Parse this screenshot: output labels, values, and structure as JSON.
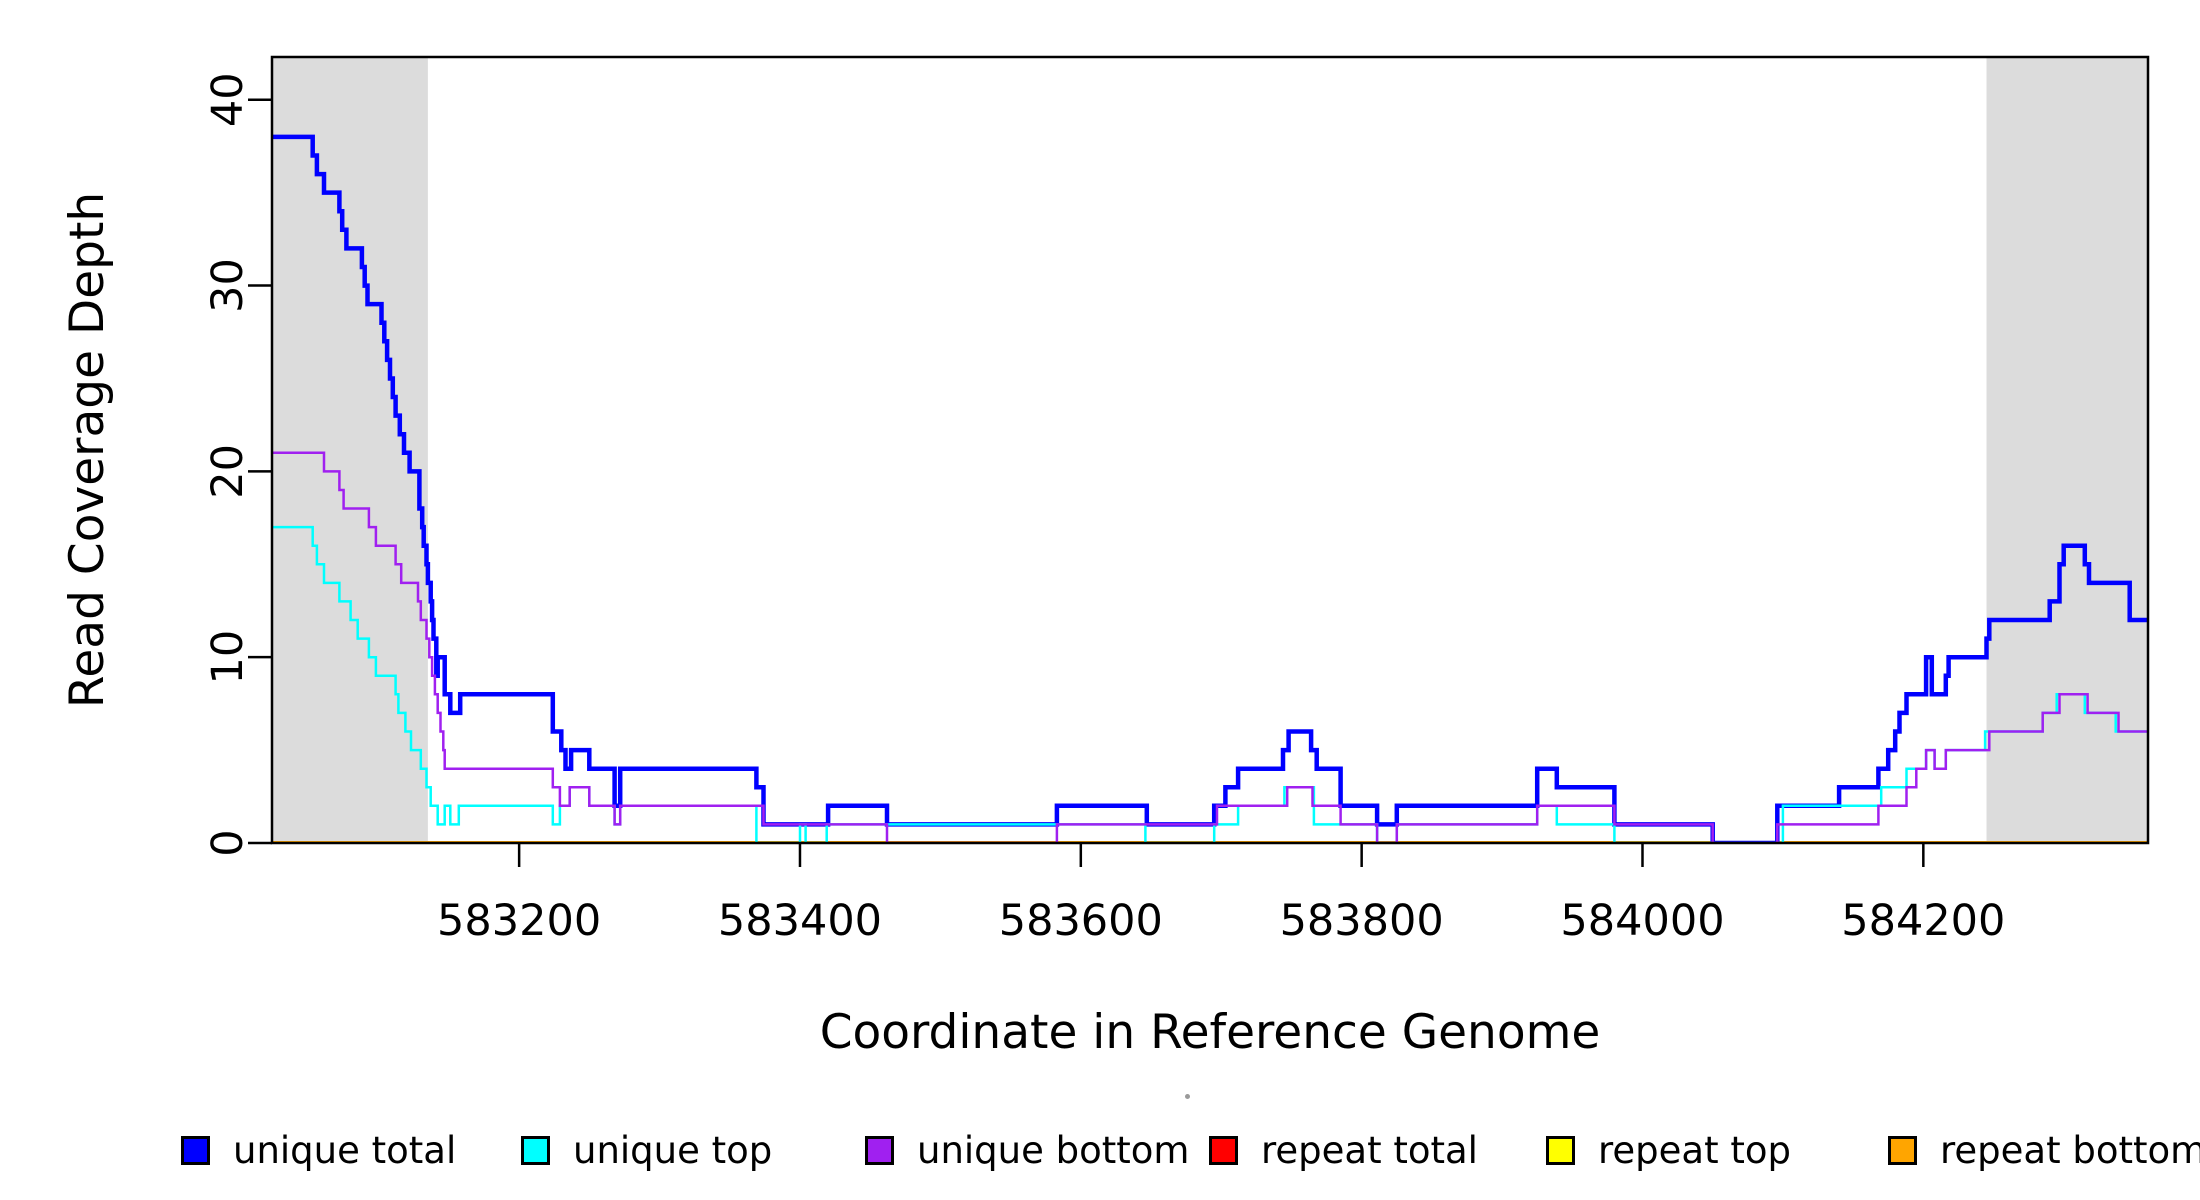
{
  "figure": {
    "x_axis_title": "Coordinate in Reference Genome",
    "y_axis_title": "Read Coverage Depth"
  },
  "legend": {
    "items": [
      {
        "label": "unique total",
        "color": "#0000FF"
      },
      {
        "label": "unique top",
        "color": "#00FFFF"
      },
      {
        "label": "unique bottom",
        "color": "#A020F0"
      },
      {
        "label": "repeat total",
        "color": "#FF0000"
      },
      {
        "label": "repeat top",
        "color": "#FFFF00"
      },
      {
        "label": "repeat bottom",
        "color": "#FFA500"
      }
    ]
  },
  "chart_data": {
    "type": "line",
    "subtype": "step-post-coverage",
    "title": "",
    "xlabel": "Coordinate in Reference Genome",
    "ylabel": "Read Coverage Depth",
    "xlim": [
      583024,
      584360
    ],
    "ylim": [
      0,
      42.3
    ],
    "xticks": [
      583200,
      583400,
      583600,
      583800,
      584000,
      584200
    ],
    "yticks": [
      0,
      10,
      20,
      30,
      40
    ],
    "grid": false,
    "legend_position": "bottom",
    "background_color": "#FFFFFF",
    "band_color": "#DCDCDC",
    "highlight_bands": [
      {
        "x0": 583024,
        "x1": 583135
      },
      {
        "x0": 584245,
        "x1": 584360
      }
    ],
    "series": [
      {
        "name": "repeat total",
        "color": "#FF0000",
        "width": 2.5,
        "points": [
          [
            583024,
            0
          ]
        ]
      },
      {
        "name": "repeat top",
        "color": "#FFFF00",
        "width": 2.5,
        "points": [
          [
            583024,
            0
          ]
        ]
      },
      {
        "name": "repeat bottom",
        "color": "#FFA500",
        "width": 4,
        "points": [
          [
            583024,
            0
          ]
        ]
      },
      {
        "name": "unique total",
        "color": "#0000FF",
        "width": 4.5,
        "points": [
          [
            583024,
            38
          ],
          [
            583053,
            37
          ],
          [
            583056,
            36
          ],
          [
            583061,
            35
          ],
          [
            583072,
            34
          ],
          [
            583074,
            33
          ],
          [
            583077,
            32
          ],
          [
            583088,
            31
          ],
          [
            583090,
            30
          ],
          [
            583092,
            29
          ],
          [
            583102,
            28
          ],
          [
            583104,
            27
          ],
          [
            583106,
            26
          ],
          [
            583108,
            25
          ],
          [
            583110,
            24
          ],
          [
            583112,
            23
          ],
          [
            583115,
            22
          ],
          [
            583118,
            21
          ],
          [
            583122,
            20
          ],
          [
            583129,
            18
          ],
          [
            583131,
            17
          ],
          [
            583132,
            16
          ],
          [
            583134,
            15
          ],
          [
            583135,
            14
          ],
          [
            583137,
            13
          ],
          [
            583138,
            12
          ],
          [
            583139,
            11
          ],
          [
            583141,
            9
          ],
          [
            583142,
            10
          ],
          [
            583147,
            8
          ],
          [
            583151,
            7
          ],
          [
            583158,
            8
          ],
          [
            583224,
            6
          ],
          [
            583230,
            5
          ],
          [
            583233,
            4
          ],
          [
            583237,
            5
          ],
          [
            583250,
            4
          ],
          [
            583268,
            2
          ],
          [
            583272,
            4
          ],
          [
            583369,
            3
          ],
          [
            583374,
            1
          ],
          [
            583420,
            2
          ],
          [
            583462,
            1
          ],
          [
            583583,
            2
          ],
          [
            583647,
            1
          ],
          [
            583695,
            2
          ],
          [
            583703,
            3
          ],
          [
            583712,
            4
          ],
          [
            583744,
            5
          ],
          [
            583748,
            6
          ],
          [
            583764,
            5
          ],
          [
            583768,
            4
          ],
          [
            583785,
            2
          ],
          [
            583811,
            1
          ],
          [
            583825,
            2
          ],
          [
            583925,
            4
          ],
          [
            583939,
            3
          ],
          [
            583980,
            1
          ],
          [
            584050,
            0
          ],
          [
            584096,
            2
          ],
          [
            584140,
            3
          ],
          [
            584168,
            4
          ],
          [
            584175,
            5
          ],
          [
            584180,
            6
          ],
          [
            584183,
            7
          ],
          [
            584188,
            8
          ],
          [
            584202,
            10
          ],
          [
            584206,
            8
          ],
          [
            584216,
            9
          ],
          [
            584218,
            10
          ],
          [
            584245,
            11
          ],
          [
            584247,
            12
          ],
          [
            584290,
            13
          ],
          [
            584297,
            15
          ],
          [
            584300,
            16
          ],
          [
            584315,
            15
          ],
          [
            584318,
            14
          ],
          [
            584347,
            12
          ]
        ]
      },
      {
        "name": "unique top",
        "color": "#00FFFF",
        "width": 2.5,
        "points": [
          [
            583024,
            17
          ],
          [
            583053,
            16
          ],
          [
            583056,
            15
          ],
          [
            583061,
            14
          ],
          [
            583072,
            13
          ],
          [
            583080,
            12
          ],
          [
            583085,
            11
          ],
          [
            583093,
            10
          ],
          [
            583098,
            9
          ],
          [
            583112,
            8
          ],
          [
            583114,
            7
          ],
          [
            583119,
            6
          ],
          [
            583123,
            5
          ],
          [
            583130,
            4
          ],
          [
            583134,
            3
          ],
          [
            583137,
            2
          ],
          [
            583142,
            1
          ],
          [
            583147,
            2
          ],
          [
            583151,
            1
          ],
          [
            583157,
            2
          ],
          [
            583224,
            1
          ],
          [
            583229,
            2
          ],
          [
            583236,
            3
          ],
          [
            583250,
            2
          ],
          [
            583268,
            1
          ],
          [
            583272,
            2
          ],
          [
            583369,
            0
          ],
          [
            583400,
            1
          ],
          [
            583404,
            0
          ],
          [
            583419,
            1
          ],
          [
            583646,
            0
          ],
          [
            583695,
            1
          ],
          [
            583712,
            2
          ],
          [
            583745,
            3
          ],
          [
            583766,
            1
          ],
          [
            583811,
            0
          ],
          [
            583825,
            1
          ],
          [
            583925,
            2
          ],
          [
            583939,
            1
          ],
          [
            583980,
            0
          ],
          [
            584100,
            2
          ],
          [
            584170,
            3
          ],
          [
            584188,
            4
          ],
          [
            584202,
            5
          ],
          [
            584208,
            4
          ],
          [
            584216,
            5
          ],
          [
            584244,
            6
          ],
          [
            584285,
            7
          ],
          [
            584295,
            8
          ],
          [
            584315,
            7
          ],
          [
            584337,
            6
          ]
        ]
      },
      {
        "name": "unique bottom",
        "color": "#A020F0",
        "width": 2.5,
        "points": [
          [
            583024,
            21
          ],
          [
            583061,
            20
          ],
          [
            583072,
            19
          ],
          [
            583075,
            18
          ],
          [
            583093,
            17
          ],
          [
            583098,
            16
          ],
          [
            583112,
            15
          ],
          [
            583116,
            14
          ],
          [
            583128,
            13
          ],
          [
            583130,
            12
          ],
          [
            583134,
            11
          ],
          [
            583136,
            10
          ],
          [
            583138,
            9
          ],
          [
            583140,
            8
          ],
          [
            583142,
            7
          ],
          [
            583144,
            6
          ],
          [
            583146,
            5
          ],
          [
            583147,
            4
          ],
          [
            583224,
            3
          ],
          [
            583229,
            2
          ],
          [
            583236,
            3
          ],
          [
            583250,
            2
          ],
          [
            583268,
            1
          ],
          [
            583272,
            2
          ],
          [
            583374,
            1
          ],
          [
            583462,
            0
          ],
          [
            583583,
            1
          ],
          [
            583697,
            2
          ],
          [
            583747,
            3
          ],
          [
            583765,
            2
          ],
          [
            583785,
            1
          ],
          [
            583811,
            0
          ],
          [
            583825,
            1
          ],
          [
            583925,
            2
          ],
          [
            583980,
            1
          ],
          [
            584050,
            0
          ],
          [
            584096,
            1
          ],
          [
            584168,
            2
          ],
          [
            584188,
            3
          ],
          [
            584195,
            4
          ],
          [
            584202,
            5
          ],
          [
            584208,
            4
          ],
          [
            584216,
            5
          ],
          [
            584247,
            6
          ],
          [
            584285,
            7
          ],
          [
            584297,
            8
          ],
          [
            584317,
            7
          ],
          [
            584339,
            6
          ]
        ]
      }
    ]
  }
}
